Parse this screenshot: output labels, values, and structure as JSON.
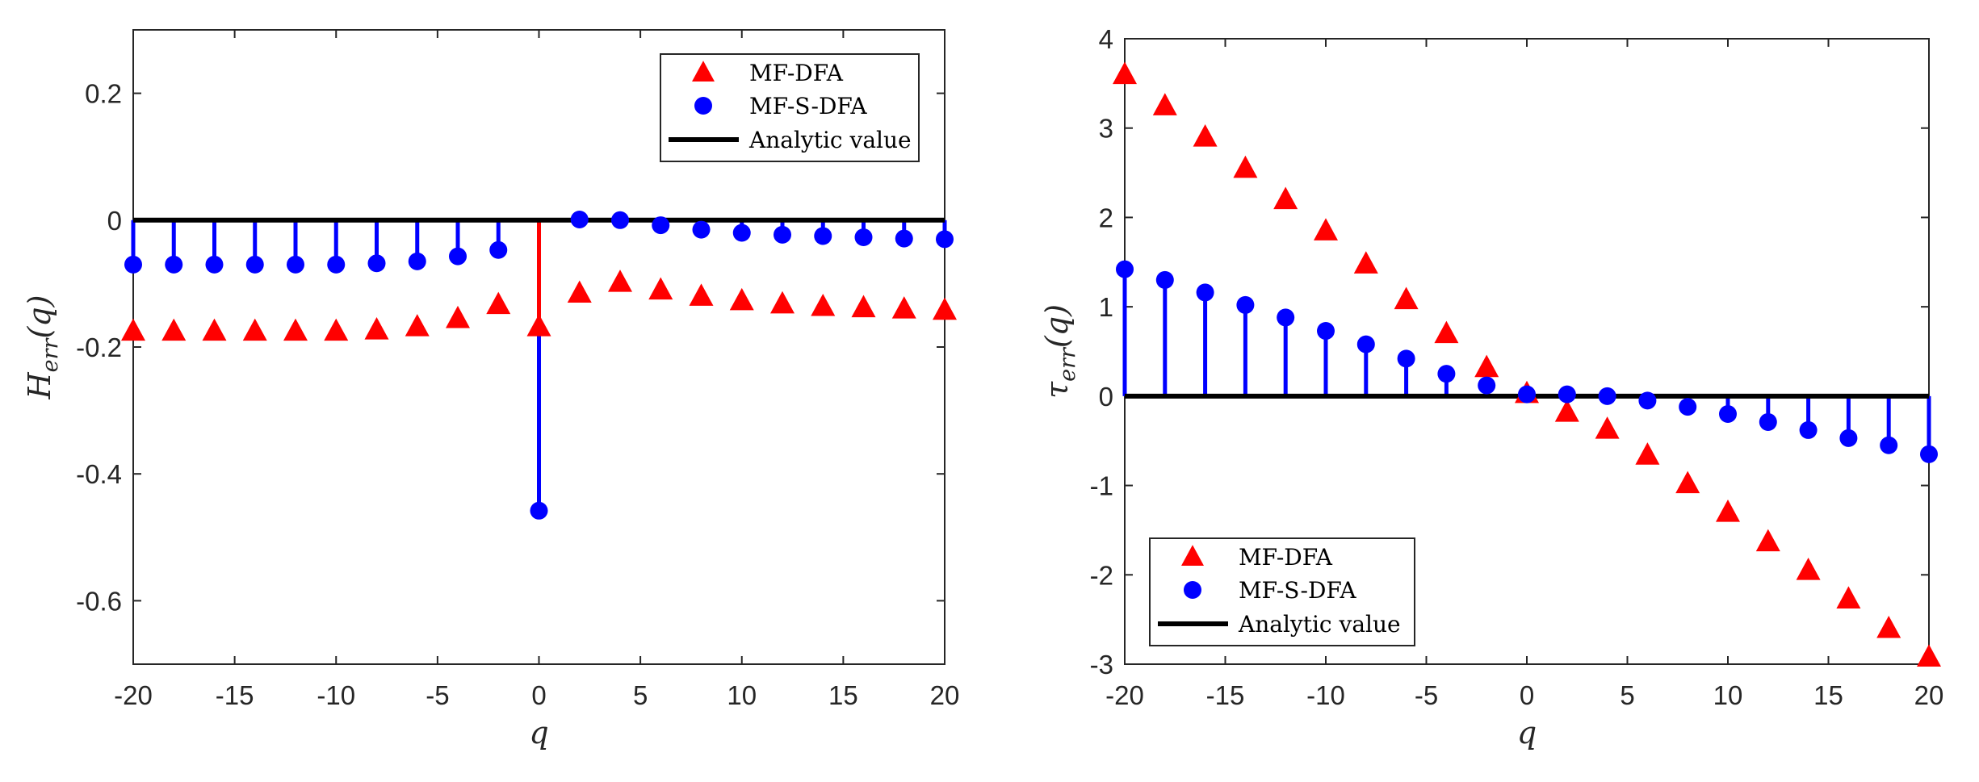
{
  "colors": {
    "mfdfa": "#ff0000",
    "mfsdfa": "#0000ff",
    "analytic": "#000000",
    "axis": "#262626"
  },
  "chart_data": [
    {
      "type": "stem-scatter",
      "xlabel": "q",
      "ylabel": {
        "base": "H",
        "sub": "err",
        "arg": "(q)"
      },
      "xlim": [
        -20,
        20
      ],
      "ylim": [
        -0.7,
        0.3
      ],
      "xticks": [
        -20,
        -15,
        -10,
        -5,
        0,
        5,
        10,
        15,
        20
      ],
      "xtick_labels": [
        "-20",
        "-15",
        "-10",
        "-5",
        "0",
        "5",
        "10",
        "15",
        "20"
      ],
      "yticks": [
        -0.6,
        -0.4,
        -0.2,
        0,
        0.2
      ],
      "ytick_labels": [
        "-0.6",
        "-0.4",
        "-0.2",
        "0",
        "0.2"
      ],
      "legend_position": "top-right",
      "analytic_value": 0,
      "stem_series": "MF-S-DFA",
      "special_stems": [
        {
          "series": "MF-DFA",
          "x": 0
        }
      ],
      "legend": [
        "MF-DFA",
        "MF-S-DFA",
        "Analytic value"
      ],
      "series": [
        {
          "name": "MF-DFA",
          "marker": "triangle",
          "x": [
            -20,
            -18,
            -16,
            -14,
            -12,
            -10,
            -8,
            -6,
            -4,
            -2,
            0,
            2,
            4,
            6,
            8,
            10,
            12,
            14,
            16,
            18,
            20
          ],
          "values": [
            -0.175,
            -0.175,
            -0.175,
            -0.175,
            -0.175,
            -0.175,
            -0.173,
            -0.168,
            -0.155,
            -0.133,
            -0.168,
            -0.115,
            -0.098,
            -0.11,
            -0.12,
            -0.127,
            -0.132,
            -0.136,
            -0.138,
            -0.14,
            -0.142
          ]
        },
        {
          "name": "MF-S-DFA",
          "marker": "circle",
          "x": [
            -20,
            -18,
            -16,
            -14,
            -12,
            -10,
            -8,
            -6,
            -4,
            -2,
            0,
            2,
            4,
            6,
            8,
            10,
            12,
            14,
            16,
            18,
            20
          ],
          "values": [
            -0.07,
            -0.07,
            -0.07,
            -0.07,
            -0.07,
            -0.07,
            -0.068,
            -0.065,
            -0.057,
            -0.047,
            -0.458,
            0.001,
            0.0,
            -0.008,
            -0.015,
            -0.02,
            -0.023,
            -0.025,
            -0.027,
            -0.029,
            -0.03
          ]
        }
      ]
    },
    {
      "type": "stem-scatter",
      "xlabel": "q",
      "ylabel": {
        "base": "τ",
        "sub": "err",
        "arg": "(q)"
      },
      "xlim": [
        -20,
        20
      ],
      "ylim": [
        -3,
        4
      ],
      "xticks": [
        -20,
        -15,
        -10,
        -5,
        0,
        5,
        10,
        15,
        20
      ],
      "xtick_labels": [
        "-20",
        "-15",
        "-10",
        "-5",
        "0",
        "5",
        "10",
        "15",
        "20"
      ],
      "yticks": [
        -3,
        -2,
        -1,
        0,
        1,
        2,
        3,
        4
      ],
      "ytick_labels": [
        "-3",
        "-2",
        "-1",
        "0",
        "1",
        "2",
        "3",
        "4"
      ],
      "legend_position": "bottom-left",
      "analytic_value": 0,
      "stem_series": "MF-S-DFA",
      "special_stems": [],
      "legend": [
        "MF-DFA",
        "MF-S-DFA",
        "Analytic value"
      ],
      "series": [
        {
          "name": "MF-DFA",
          "marker": "triangle",
          "x": [
            -20,
            -18,
            -16,
            -14,
            -12,
            -10,
            -8,
            -6,
            -4,
            -2,
            0,
            2,
            4,
            6,
            8,
            10,
            12,
            14,
            16,
            18,
            20
          ],
          "values": [
            3.6,
            3.25,
            2.9,
            2.55,
            2.2,
            1.85,
            1.48,
            1.08,
            0.7,
            0.32,
            0.03,
            -0.18,
            -0.37,
            -0.66,
            -0.98,
            -1.3,
            -1.63,
            -1.95,
            -2.27,
            -2.6,
            -2.92
          ]
        },
        {
          "name": "MF-S-DFA",
          "marker": "circle",
          "x": [
            -20,
            -18,
            -16,
            -14,
            -12,
            -10,
            -8,
            -6,
            -4,
            -2,
            0,
            2,
            4,
            6,
            8,
            10,
            12,
            14,
            16,
            18,
            20
          ],
          "values": [
            1.42,
            1.3,
            1.16,
            1.02,
            0.88,
            0.73,
            0.58,
            0.42,
            0.25,
            0.12,
            0.02,
            0.02,
            0.0,
            -0.05,
            -0.12,
            -0.2,
            -0.29,
            -0.38,
            -0.47,
            -0.55,
            -0.65
          ]
        }
      ]
    }
  ]
}
